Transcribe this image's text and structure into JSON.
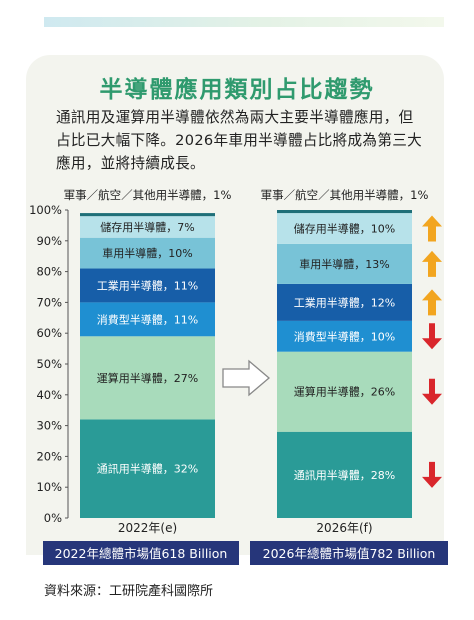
{
  "header": {
    "title": "半導體應用類別占比趨勢",
    "description": "通訊用及運算用半導體依然為兩大主要半導體應用，但占比已大幅下降。2026年車用半導體占比將成為第三大應用，並將持續成長。"
  },
  "chart_data": {
    "type": "bar",
    "stacked": true,
    "percent": true,
    "categories": [
      "2022年(e)",
      "2026年(f)"
    ],
    "ylim": [
      0,
      100
    ],
    "yticks": [
      "0%",
      "10%",
      "20%",
      "30%",
      "40%",
      "50%",
      "60%",
      "70%",
      "80%",
      "90%",
      "100%"
    ],
    "series": [
      {
        "name": "通訊用半導體",
        "values": [
          32,
          28
        ],
        "labels": [
          "通訊用半導體，32%",
          "通訊用半導體，28%"
        ],
        "color": "#2a9b97",
        "trend": "down"
      },
      {
        "name": "運算用半導體",
        "values": [
          27,
          26
        ],
        "labels": [
          "運算用半導體，27%",
          "運算用半導體，26%"
        ],
        "color": "#a8dbbb",
        "trend": "down"
      },
      {
        "name": "消費型半導體",
        "values": [
          11,
          10
        ],
        "labels": [
          "消費型半導體，11%",
          "消費型半導體，10%"
        ],
        "color": "#1f8fd1",
        "trend": "down"
      },
      {
        "name": "工業用半導體",
        "values": [
          11,
          12
        ],
        "labels": [
          "工業用半導體，11%",
          "工業用半導體，12%"
        ],
        "color": "#175ea8",
        "trend": "up"
      },
      {
        "name": "車用半導體",
        "values": [
          10,
          13
        ],
        "labels": [
          "車用半導體，10%",
          "車用半導體，13%"
        ],
        "color": "#78c3d7",
        "trend": "up"
      },
      {
        "name": "儲存用半導體",
        "values": [
          7,
          10
        ],
        "labels": [
          "儲存用半導體，7%",
          "儲存用半導體，10%"
        ],
        "color": "#b7e2ea",
        "trend": "up"
      },
      {
        "name": "軍事／航空／其他用半導體",
        "values": [
          1,
          1
        ],
        "labels": [
          "軍事／航空／其他用半導體，1%",
          "軍事／航空／其他用半導體，1%"
        ],
        "color": "#1f6f78",
        "trend": "none"
      }
    ],
    "market_labels": [
      "2022年總體市場值618 Billion",
      "2026年總體市場值782 Billion"
    ],
    "trend_colors": {
      "up": "#f2a51f",
      "down": "#d9262c"
    },
    "grid": false,
    "legend": "none"
  },
  "source": "資料來源：工研院產科國際所"
}
